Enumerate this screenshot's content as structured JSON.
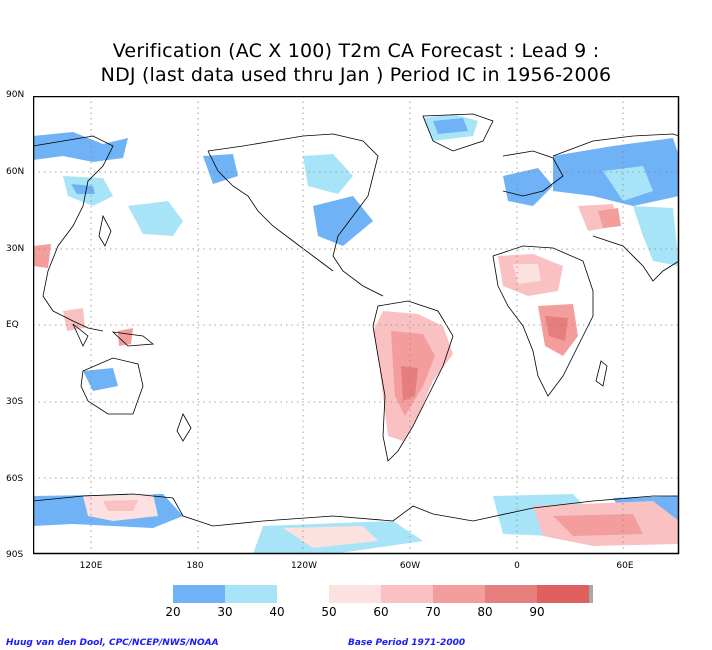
{
  "title": {
    "line1": "Verification (AC X 100) T2m CA Forecast : Lead 9 :",
    "line2": "NDJ (last data used thru Jan ) Period IC in 1956-2006"
  },
  "latitude_labels": [
    "90N",
    "60N",
    "30N",
    "EQ",
    "30S",
    "60S",
    "90S"
  ],
  "longitude_labels": [
    "120E",
    "180",
    "120W",
    "60W",
    "0",
    "60E"
  ],
  "colorbar": {
    "labels": [
      "20",
      "30",
      "40",
      "50",
      "60",
      "70",
      "80",
      "90"
    ],
    "colors": [
      "#6fb2f5",
      "#a8e4f7",
      "#ffffff",
      "#fde0e0",
      "#f9c1c1",
      "#f39d9d",
      "#e67e7e",
      "#e06060",
      "#a8a8a8"
    ]
  },
  "footer": {
    "credit": "Huug van den Dool, CPC/NCEP/NWS/NOAA",
    "base_period": "Base Period 1971-2000"
  }
}
